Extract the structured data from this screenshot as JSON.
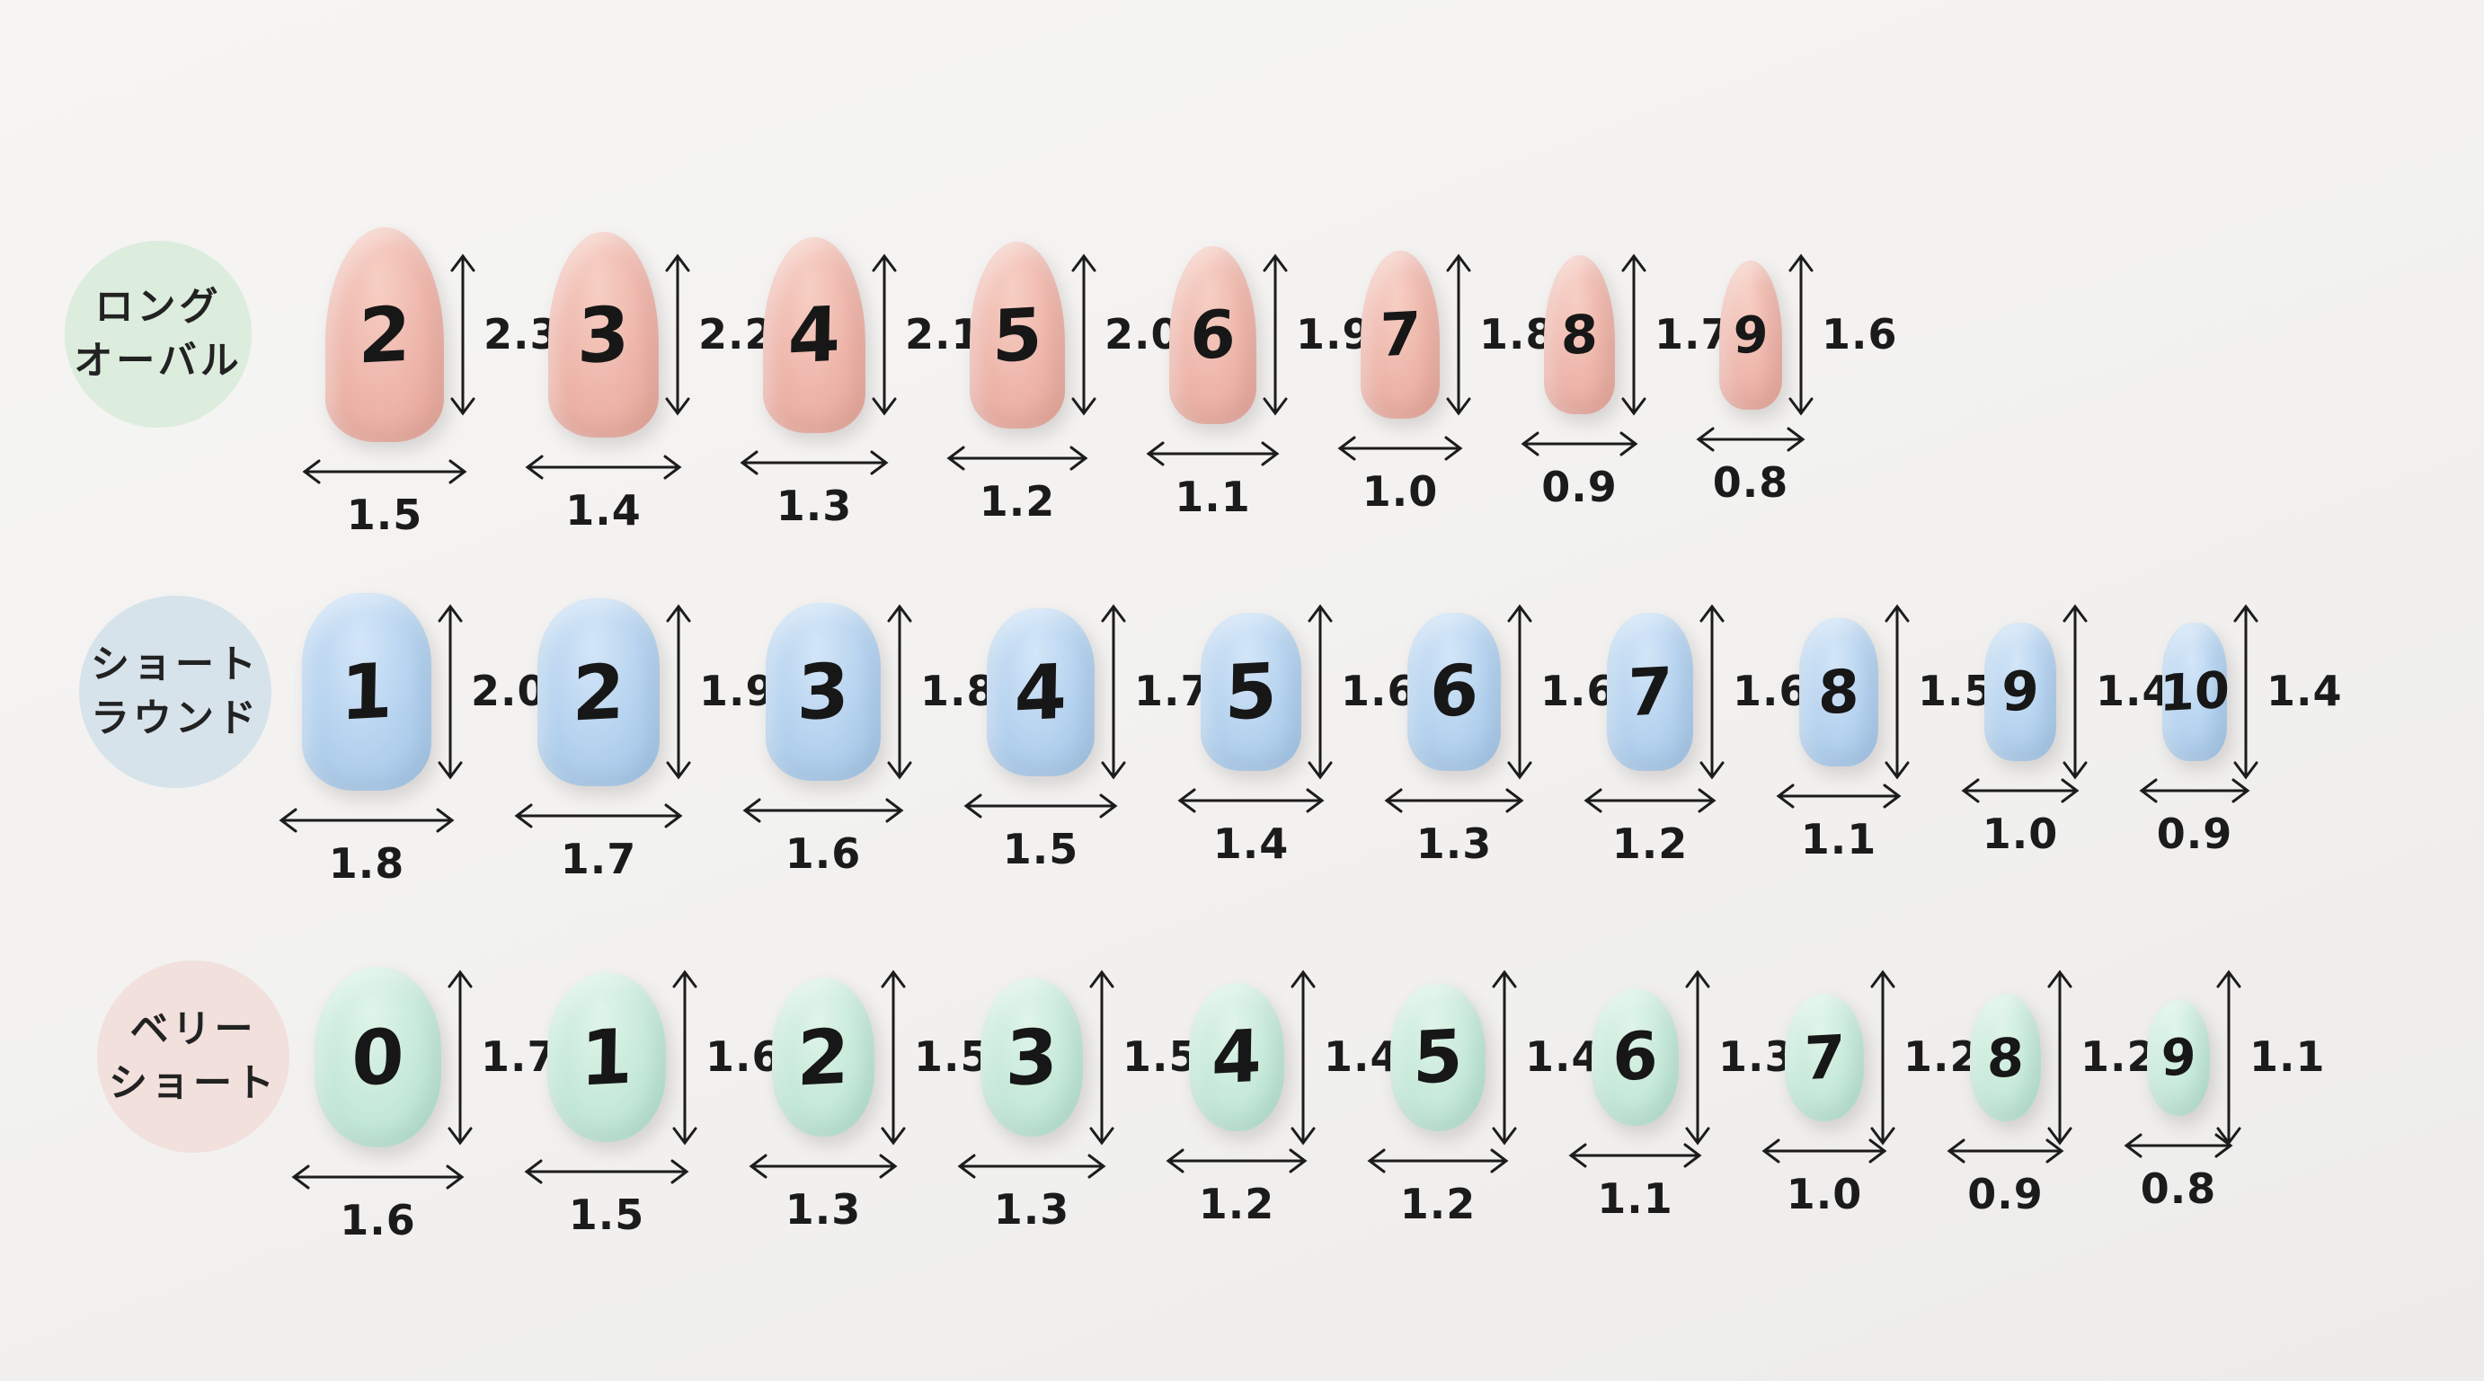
{
  "ink_color": "#1c1c1c",
  "background_color": "#f2f1ef",
  "rows": [
    {
      "id": "long-oval",
      "label": [
        "ロング",
        "オーバル"
      ],
      "label_bg": "#dcecdd",
      "nail_base": "#edb4a9",
      "nail_light": "#f7cfc4",
      "nail_dark": "#e2a093",
      "nails": [
        {
          "size": "2",
          "height_cm": "2.3",
          "width_cm": "1.5"
        },
        {
          "size": "3",
          "height_cm": "2.2",
          "width_cm": "1.4"
        },
        {
          "size": "4",
          "height_cm": "2.1",
          "width_cm": "1.3"
        },
        {
          "size": "5",
          "height_cm": "2.0",
          "width_cm": "1.2"
        },
        {
          "size": "6",
          "height_cm": "1.9",
          "width_cm": "1.1"
        },
        {
          "size": "7",
          "height_cm": "1.8",
          "width_cm": "1.0"
        },
        {
          "size": "8",
          "height_cm": "1.7",
          "width_cm": "0.9"
        },
        {
          "size": "9",
          "height_cm": "1.6",
          "width_cm": "0.8"
        }
      ]
    },
    {
      "id": "short-round",
      "label": [
        "ショート",
        "ラウンド"
      ],
      "label_bg": "#d7e3ea",
      "nail_base": "#b3d1ee",
      "nail_light": "#d4e6f8",
      "nail_dark": "#9cc0e3",
      "nails": [
        {
          "size": "1",
          "height_cm": "2.0",
          "width_cm": "1.8"
        },
        {
          "size": "2",
          "height_cm": "1.9",
          "width_cm": "1.7"
        },
        {
          "size": "3",
          "height_cm": "1.8",
          "width_cm": "1.6"
        },
        {
          "size": "4",
          "height_cm": "1.7",
          "width_cm": "1.5"
        },
        {
          "size": "5",
          "height_cm": "1.6",
          "width_cm": "1.4"
        },
        {
          "size": "6",
          "height_cm": "1.6",
          "width_cm": "1.3"
        },
        {
          "size": "7",
          "height_cm": "1.6",
          "width_cm": "1.2"
        },
        {
          "size": "8",
          "height_cm": "1.5",
          "width_cm": "1.1"
        },
        {
          "size": "9",
          "height_cm": "1.4",
          "width_cm": "1.0"
        },
        {
          "size": "10",
          "height_cm": "1.4",
          "width_cm": "0.9"
        }
      ]
    },
    {
      "id": "very-short",
      "label": [
        "ベリー",
        "ショート"
      ],
      "label_bg": "#f1e0db",
      "nail_base": "#c4e8d8",
      "nail_light": "#e0f5ea",
      "nail_dark": "#abdbc6",
      "nails": [
        {
          "size": "0",
          "height_cm": "1.7",
          "width_cm": "1.6"
        },
        {
          "size": "1",
          "height_cm": "1.6",
          "width_cm": "1.5"
        },
        {
          "size": "2",
          "height_cm": "1.5",
          "width_cm": "1.3"
        },
        {
          "size": "3",
          "height_cm": "1.5",
          "width_cm": "1.3"
        },
        {
          "size": "4",
          "height_cm": "1.4",
          "width_cm": "1.2"
        },
        {
          "size": "5",
          "height_cm": "1.4",
          "width_cm": "1.2"
        },
        {
          "size": "6",
          "height_cm": "1.3",
          "width_cm": "1.1"
        },
        {
          "size": "7",
          "height_cm": "1.2",
          "width_cm": "1.0"
        },
        {
          "size": "8",
          "height_cm": "1.2",
          "width_cm": "0.9"
        },
        {
          "size": "9",
          "height_cm": "1.1",
          "width_cm": "0.8"
        }
      ]
    }
  ]
}
